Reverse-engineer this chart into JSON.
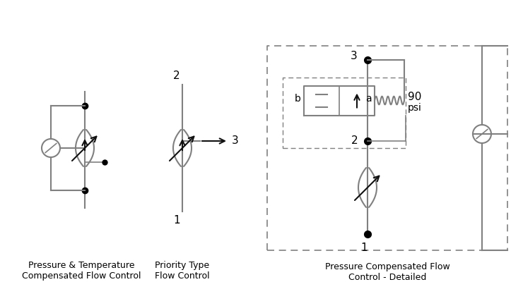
{
  "bg_color": "#ffffff",
  "line_color": "#808080",
  "dark_color": "#111111",
  "black": "#000000",
  "label1": "Pressure & Temperature\nCompensated Flow Control",
  "label2": "Priority Type\nFlow Control",
  "label3": "Pressure Compensated Flow\nControl - Detailed",
  "label_fontsize": 9,
  "fig_width": 7.4,
  "fig_height": 4.0,
  "dpi": 100
}
